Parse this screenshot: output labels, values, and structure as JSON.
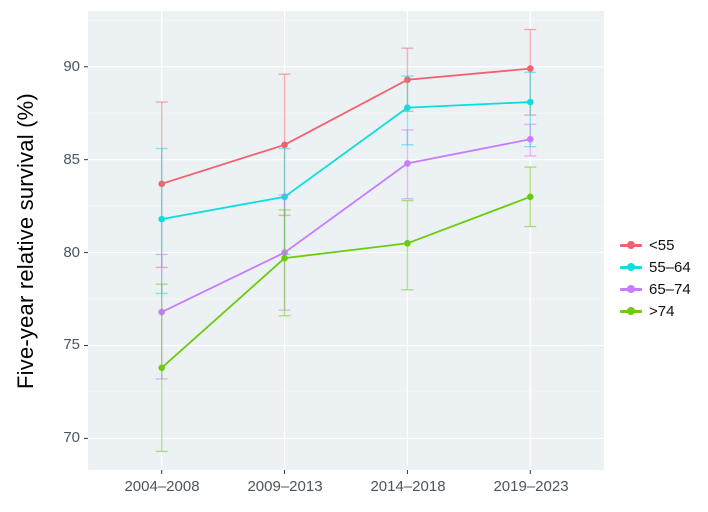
{
  "chart_data": {
    "type": "line",
    "title": "",
    "xlabel": "",
    "ylabel": "Five-year relative survival (%)",
    "categories": [
      "2004–2008",
      "2009–2013",
      "2014–2018",
      "2019–2023"
    ],
    "series": [
      {
        "name": "<55",
        "color": "#F4606C",
        "values": [
          83.7,
          85.8,
          89.3,
          89.9
        ],
        "ci_lower": [
          79.2,
          82.0,
          87.6,
          87.4
        ],
        "ci_upper": [
          88.1,
          89.6,
          91.0,
          92.0
        ]
      },
      {
        "name": "55–64",
        "color": "#0ADFDE",
        "values": [
          81.8,
          83.0,
          87.8,
          88.1
        ],
        "ci_lower": [
          77.8,
          79.9,
          85.8,
          85.7
        ],
        "ci_upper": [
          85.6,
          85.6,
          89.5,
          89.7
        ]
      },
      {
        "name": "65–74",
        "color": "#C77CFF",
        "values": [
          76.8,
          80.0,
          84.8,
          86.1
        ],
        "ci_lower": [
          73.2,
          76.9,
          82.9,
          85.2
        ],
        "ci_upper": [
          79.9,
          83.1,
          86.6,
          86.9
        ]
      },
      {
        "name": ">74",
        "color": "#6BCB0E",
        "values": [
          73.8,
          79.7,
          80.5,
          83.0
        ],
        "ci_lower": [
          69.3,
          76.6,
          78.0,
          81.4
        ],
        "ci_upper": [
          78.3,
          82.3,
          82.8,
          84.6
        ]
      }
    ],
    "yticks": [
      70,
      75,
      80,
      85,
      90
    ],
    "ylim": [
      68.3,
      93.0
    ],
    "error_bars": true,
    "grid": "white major gridlines (horizontal + vertical at categories), faint horizontal minors",
    "legend_position": "right",
    "panel_background": "#ECF1F4",
    "page_background": "#FFFFFF",
    "gridline_color": "#FFFFFF",
    "tick_color": "#333333",
    "tick_label_color": "#4A5660",
    "axis_title_color": "#000000"
  }
}
